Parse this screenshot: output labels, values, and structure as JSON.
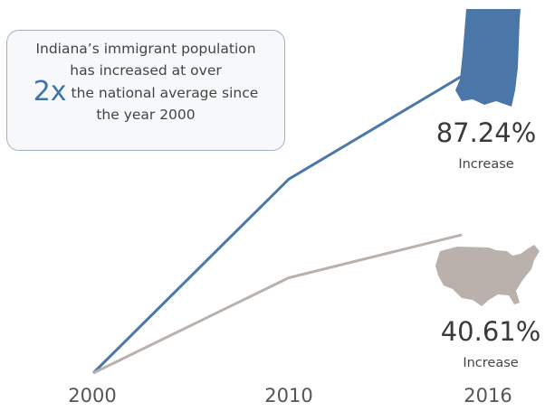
{
  "callout": {
    "line1": "Indiana’s immigrant population",
    "line2": "has increased at over",
    "multiplier": "2x",
    "line3": "the national average since",
    "line4": "the year 2000"
  },
  "labels": {
    "indiana_pct": "87.24%",
    "indiana_word": "Increase",
    "us_pct": "40.61%",
    "us_word": "Increase"
  },
  "colors": {
    "indiana": "#4c78a8",
    "us": "#bab0ac"
  },
  "chart_data": {
    "type": "line",
    "x": [
      "2000",
      "2010",
      "2016"
    ],
    "series": [
      {
        "values": [
          0,
          57,
          87.24
        ]
      },
      {
        "values": [
          0,
          28,
          40.61
        ]
      }
    ],
    "ylim": [
      0,
      90
    ],
    "grid": false
  }
}
